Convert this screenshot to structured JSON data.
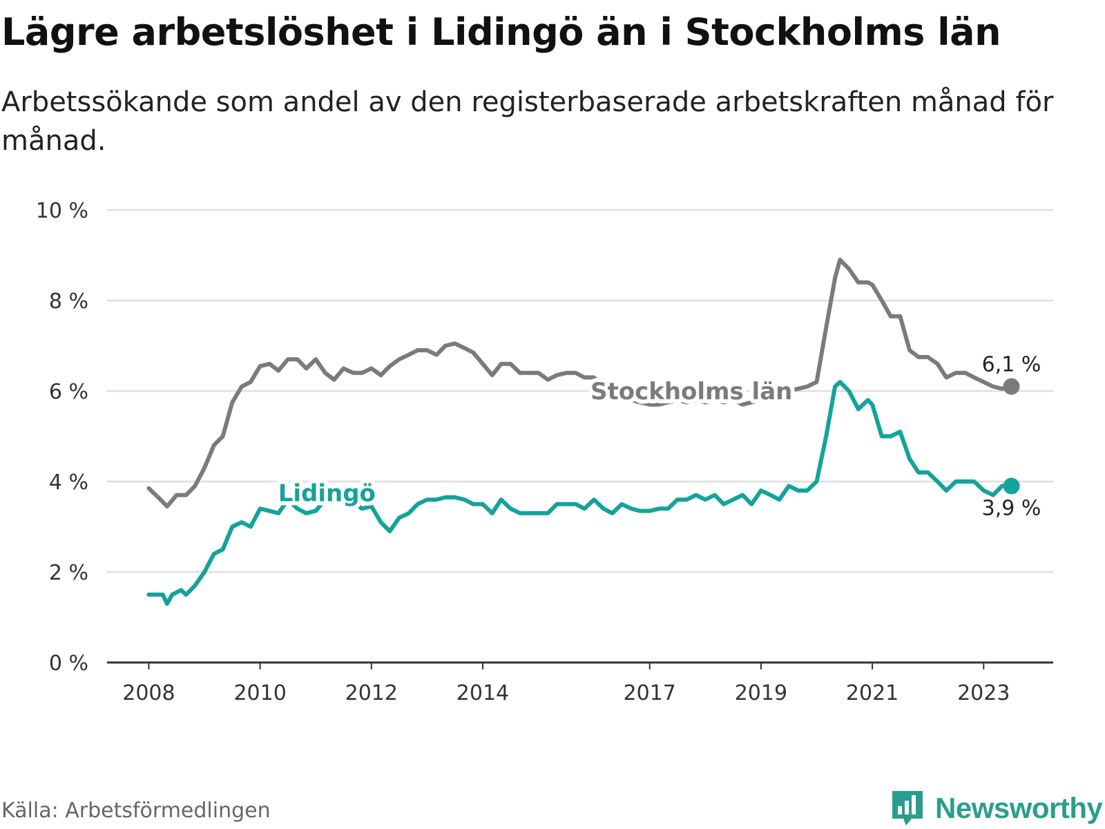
{
  "header": {
    "title": "Lägre arbetslöshet i Lidingö än i Stockholms län",
    "subtitle": "Arbetssökande som andel av den registerbaserade arbetskraften månad för månad."
  },
  "footer": {
    "source": "Källa: Arbetsförmedlingen",
    "brand": "Newsworthy"
  },
  "colors": {
    "stockholm": "#7a7a7f",
    "lidingo": "#14a39a",
    "grid": "#dedede",
    "axis": "#333333",
    "text": "#333333",
    "brand": "#2a9d8f"
  },
  "chart_data": {
    "type": "line",
    "title": "Lägre arbetslöshet i Lidingö än i Stockholms län",
    "xlabel": "",
    "ylabel": "",
    "x_unit": "year",
    "xlim": [
      2007.25,
      2024.25
    ],
    "ylim": [
      0,
      10
    ],
    "grid": true,
    "y_ticks": [
      {
        "value": 0,
        "label": "0 %"
      },
      {
        "value": 2,
        "label": "2 %"
      },
      {
        "value": 4,
        "label": "4 %"
      },
      {
        "value": 6,
        "label": "6 %"
      },
      {
        "value": 8,
        "label": "8 %"
      },
      {
        "value": 10,
        "label": "10 %"
      }
    ],
    "x_ticks": [
      {
        "value": 2008,
        "label": "2008"
      },
      {
        "value": 2010,
        "label": "2010"
      },
      {
        "value": 2012,
        "label": "2012"
      },
      {
        "value": 2014,
        "label": "2014"
      },
      {
        "value": 2017,
        "label": "2017"
      },
      {
        "value": 2019,
        "label": "2019"
      },
      {
        "value": 2021,
        "label": "2021"
      },
      {
        "value": 2023,
        "label": "2023"
      }
    ],
    "series": [
      {
        "name": "Stockholms län",
        "key": "stockholm",
        "label_anchor": [
          2017.75,
          6.0
        ],
        "end_label": "6,1 %",
        "end_label_position": "above",
        "points": [
          [
            2008.0,
            3.85
          ],
          [
            2008.17,
            3.65
          ],
          [
            2008.33,
            3.45
          ],
          [
            2008.5,
            3.7
          ],
          [
            2008.67,
            3.7
          ],
          [
            2008.83,
            3.9
          ],
          [
            2009.0,
            4.3
          ],
          [
            2009.17,
            4.8
          ],
          [
            2009.33,
            5.0
          ],
          [
            2009.5,
            5.75
          ],
          [
            2009.67,
            6.1
          ],
          [
            2009.83,
            6.2
          ],
          [
            2010.0,
            6.55
          ],
          [
            2010.17,
            6.6
          ],
          [
            2010.33,
            6.45
          ],
          [
            2010.5,
            6.7
          ],
          [
            2010.67,
            6.7
          ],
          [
            2010.83,
            6.5
          ],
          [
            2011.0,
            6.7
          ],
          [
            2011.17,
            6.4
          ],
          [
            2011.33,
            6.25
          ],
          [
            2011.5,
            6.5
          ],
          [
            2011.67,
            6.4
          ],
          [
            2011.83,
            6.4
          ],
          [
            2012.0,
            6.5
          ],
          [
            2012.17,
            6.35
          ],
          [
            2012.33,
            6.55
          ],
          [
            2012.5,
            6.7
          ],
          [
            2012.67,
            6.8
          ],
          [
            2012.83,
            6.9
          ],
          [
            2013.0,
            6.9
          ],
          [
            2013.17,
            6.8
          ],
          [
            2013.33,
            7.0
          ],
          [
            2013.5,
            7.05
          ],
          [
            2013.67,
            6.95
          ],
          [
            2013.83,
            6.85
          ],
          [
            2014.0,
            6.6
          ],
          [
            2014.17,
            6.35
          ],
          [
            2014.33,
            6.6
          ],
          [
            2014.5,
            6.6
          ],
          [
            2014.67,
            6.4
          ],
          [
            2014.83,
            6.4
          ],
          [
            2015.0,
            6.4
          ],
          [
            2015.17,
            6.25
          ],
          [
            2015.33,
            6.35
          ],
          [
            2015.5,
            6.4
          ],
          [
            2015.67,
            6.4
          ],
          [
            2015.83,
            6.3
          ],
          [
            2016.0,
            6.3
          ],
          [
            2016.17,
            6.1
          ],
          [
            2016.33,
            6.0
          ],
          [
            2016.5,
            5.9
          ],
          [
            2016.67,
            5.8
          ],
          [
            2016.83,
            5.75
          ],
          [
            2017.0,
            5.7
          ],
          [
            2017.17,
            5.7
          ],
          [
            2017.33,
            5.75
          ],
          [
            2017.5,
            5.8
          ],
          [
            2017.67,
            5.75
          ],
          [
            2017.83,
            5.8
          ],
          [
            2018.0,
            5.75
          ],
          [
            2018.17,
            5.8
          ],
          [
            2018.33,
            5.75
          ],
          [
            2018.5,
            5.8
          ],
          [
            2018.67,
            5.7
          ],
          [
            2018.83,
            5.75
          ],
          [
            2019.0,
            5.8
          ],
          [
            2019.17,
            5.85
          ],
          [
            2019.33,
            5.9
          ],
          [
            2019.5,
            6.0
          ],
          [
            2019.67,
            6.05
          ],
          [
            2019.83,
            6.1
          ],
          [
            2020.0,
            6.2
          ],
          [
            2020.17,
            7.4
          ],
          [
            2020.33,
            8.5
          ],
          [
            2020.42,
            8.9
          ],
          [
            2020.58,
            8.7
          ],
          [
            2020.75,
            8.4
          ],
          [
            2020.92,
            8.4
          ],
          [
            2021.0,
            8.35
          ],
          [
            2021.17,
            8.0
          ],
          [
            2021.33,
            7.65
          ],
          [
            2021.5,
            7.65
          ],
          [
            2021.67,
            6.9
          ],
          [
            2021.83,
            6.75
          ],
          [
            2022.0,
            6.75
          ],
          [
            2022.17,
            6.6
          ],
          [
            2022.33,
            6.3
          ],
          [
            2022.5,
            6.4
          ],
          [
            2022.67,
            6.4
          ],
          [
            2022.83,
            6.3
          ],
          [
            2023.0,
            6.2
          ],
          [
            2023.17,
            6.1
          ],
          [
            2023.33,
            6.05
          ],
          [
            2023.5,
            6.1
          ]
        ]
      },
      {
        "name": "Lidingö",
        "key": "lidingo",
        "label_anchor": [
          2011.2,
          3.75
        ],
        "end_label": "3,9 %",
        "end_label_position": "below",
        "points": [
          [
            2008.0,
            1.5
          ],
          [
            2008.17,
            1.5
          ],
          [
            2008.25,
            1.5
          ],
          [
            2008.33,
            1.3
          ],
          [
            2008.42,
            1.5
          ],
          [
            2008.58,
            1.6
          ],
          [
            2008.67,
            1.5
          ],
          [
            2008.83,
            1.7
          ],
          [
            2009.0,
            2.0
          ],
          [
            2009.17,
            2.4
          ],
          [
            2009.33,
            2.5
          ],
          [
            2009.5,
            3.0
          ],
          [
            2009.67,
            3.1
          ],
          [
            2009.83,
            3.0
          ],
          [
            2010.0,
            3.4
          ],
          [
            2010.17,
            3.35
          ],
          [
            2010.33,
            3.3
          ],
          [
            2010.5,
            3.6
          ],
          [
            2010.67,
            3.4
          ],
          [
            2010.83,
            3.3
          ],
          [
            2011.0,
            3.35
          ],
          [
            2011.17,
            3.6
          ],
          [
            2011.33,
            3.55
          ],
          [
            2011.5,
            3.6
          ],
          [
            2011.67,
            3.55
          ],
          [
            2011.83,
            3.4
          ],
          [
            2012.0,
            3.45
          ],
          [
            2012.17,
            3.1
          ],
          [
            2012.33,
            2.9
          ],
          [
            2012.5,
            3.2
          ],
          [
            2012.67,
            3.3
          ],
          [
            2012.83,
            3.5
          ],
          [
            2013.0,
            3.6
          ],
          [
            2013.17,
            3.6
          ],
          [
            2013.33,
            3.65
          ],
          [
            2013.5,
            3.65
          ],
          [
            2013.67,
            3.6
          ],
          [
            2013.83,
            3.5
          ],
          [
            2014.0,
            3.5
          ],
          [
            2014.17,
            3.3
          ],
          [
            2014.33,
            3.6
          ],
          [
            2014.5,
            3.4
          ],
          [
            2014.67,
            3.3
          ],
          [
            2014.83,
            3.3
          ],
          [
            2015.0,
            3.3
          ],
          [
            2015.17,
            3.3
          ],
          [
            2015.33,
            3.5
          ],
          [
            2015.5,
            3.5
          ],
          [
            2015.67,
            3.5
          ],
          [
            2015.83,
            3.4
          ],
          [
            2016.0,
            3.6
          ],
          [
            2016.17,
            3.4
          ],
          [
            2016.33,
            3.3
          ],
          [
            2016.5,
            3.5
          ],
          [
            2016.67,
            3.4
          ],
          [
            2016.83,
            3.35
          ],
          [
            2017.0,
            3.35
          ],
          [
            2017.17,
            3.4
          ],
          [
            2017.33,
            3.4
          ],
          [
            2017.5,
            3.6
          ],
          [
            2017.67,
            3.6
          ],
          [
            2017.83,
            3.7
          ],
          [
            2018.0,
            3.6
          ],
          [
            2018.17,
            3.7
          ],
          [
            2018.33,
            3.5
          ],
          [
            2018.5,
            3.6
          ],
          [
            2018.67,
            3.7
          ],
          [
            2018.83,
            3.5
          ],
          [
            2019.0,
            3.8
          ],
          [
            2019.17,
            3.7
          ],
          [
            2019.33,
            3.6
          ],
          [
            2019.5,
            3.9
          ],
          [
            2019.67,
            3.8
          ],
          [
            2019.83,
            3.8
          ],
          [
            2020.0,
            4.0
          ],
          [
            2020.17,
            5.0
          ],
          [
            2020.33,
            6.1
          ],
          [
            2020.42,
            6.2
          ],
          [
            2020.58,
            6.0
          ],
          [
            2020.75,
            5.6
          ],
          [
            2020.92,
            5.8
          ],
          [
            2021.0,
            5.7
          ],
          [
            2021.17,
            5.0
          ],
          [
            2021.33,
            5.0
          ],
          [
            2021.5,
            5.1
          ],
          [
            2021.67,
            4.5
          ],
          [
            2021.83,
            4.2
          ],
          [
            2022.0,
            4.2
          ],
          [
            2022.17,
            4.0
          ],
          [
            2022.33,
            3.8
          ],
          [
            2022.5,
            4.0
          ],
          [
            2022.67,
            4.0
          ],
          [
            2022.83,
            4.0
          ],
          [
            2023.0,
            3.8
          ],
          [
            2023.17,
            3.7
          ],
          [
            2023.33,
            3.9
          ],
          [
            2023.5,
            3.9
          ]
        ]
      }
    ]
  }
}
